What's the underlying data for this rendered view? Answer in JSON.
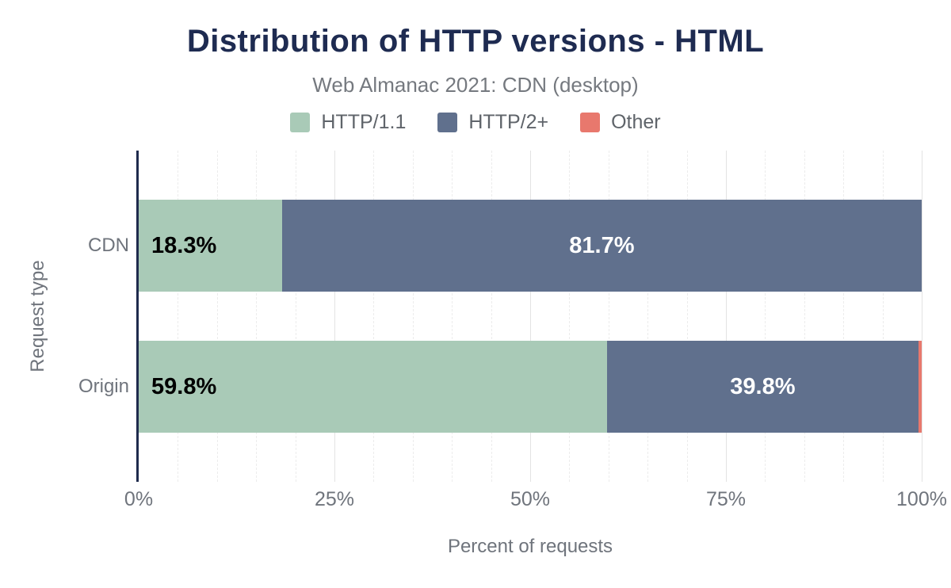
{
  "theme": {
    "background": "#ffffff",
    "title_color": "#1e2b51",
    "subtitle_color": "#75797f",
    "axis_line_color": "#1f2b4d",
    "tick_label_color": "#6f747c",
    "legend_text_color": "#5f646a",
    "grid_minor_color": "#ececec",
    "grid_major_color": "#e3e3e3"
  },
  "chart_data": {
    "type": "bar",
    "orientation": "horizontal",
    "stacked": true,
    "title": "Distribution of HTTP versions - HTML",
    "subtitle": "Web Almanac 2021: CDN (desktop)",
    "categories": [
      "CDN",
      "Origin"
    ],
    "series": [
      {
        "name": "HTTP/1.1",
        "color": "#a9cab7",
        "values": [
          18.3,
          59.8
        ],
        "labels": [
          "18.3%",
          "59.8%"
        ],
        "label_color": "#000000",
        "label_align": "start"
      },
      {
        "name": "HTTP/2+",
        "color": "#60708d",
        "values": [
          81.7,
          39.8
        ],
        "labels": [
          "81.7%",
          "39.8%"
        ],
        "label_color": "#ffffff",
        "label_align": "center"
      },
      {
        "name": "Other",
        "color": "#e8786d",
        "values": [
          0.0,
          0.4
        ],
        "labels": [
          "",
          ""
        ],
        "label_color": "#000000",
        "label_align": "none"
      }
    ],
    "xlabel": "Percent of requests",
    "ylabel": "Request type",
    "xlim": [
      0,
      100
    ],
    "x_ticks": [
      {
        "value": 0,
        "label": "0%"
      },
      {
        "value": 25,
        "label": "25%"
      },
      {
        "value": 50,
        "label": "50%"
      },
      {
        "value": 75,
        "label": "75%"
      },
      {
        "value": 100,
        "label": "100%"
      }
    ],
    "grid_minor_step_percent": 5,
    "grid_major_step_percent": 25,
    "legend_position": "top",
    "grid": true
  }
}
